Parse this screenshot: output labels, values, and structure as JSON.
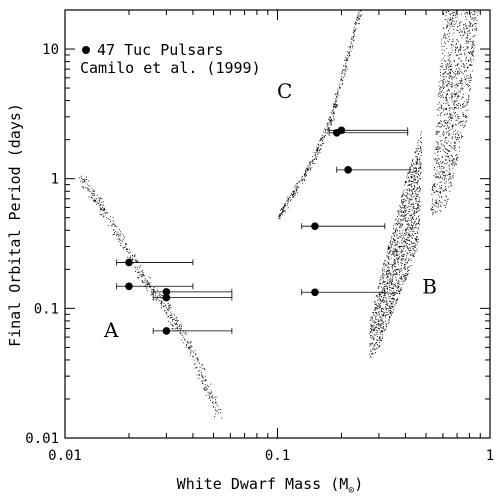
{
  "chart_data": {
    "type": "scatter",
    "xlabel": "White Dwarf Mass (M",
    "xlabel_subscript_symbol": "⊙",
    "xlabel_suffix": ")",
    "ylabel": "Final Orbital Period (days)",
    "xscale": "log",
    "yscale": "log",
    "xlim": [
      0.01,
      1
    ],
    "ylim": [
      0.01,
      20
    ],
    "x_ticks": [
      {
        "value": 0.01,
        "label": "0.01"
      },
      {
        "value": 0.1,
        "label": "0.1"
      },
      {
        "value": 1,
        "label": "1"
      }
    ],
    "y_ticks": [
      {
        "value": 0.01,
        "label": "0.01"
      },
      {
        "value": 0.1,
        "label": "0.1"
      },
      {
        "value": 1,
        "label": "1"
      },
      {
        "value": 10,
        "label": "10"
      }
    ],
    "grid": false,
    "legend": {
      "placement": "top-left",
      "line1": "47 Tuc Pulsars",
      "line2": "Camilo et al. (1999)",
      "marker": "filled-circle"
    },
    "series": [
      {
        "name": "47 Tuc Pulsars",
        "marker": "filled-circle",
        "color": "#000000",
        "points": [
          {
            "x": 0.02,
            "y": 0.226,
            "x_err_low": 0.0175,
            "x_err_high": 0.04
          },
          {
            "x": 0.02,
            "y": 0.148,
            "x_err_low": 0.0175,
            "x_err_high": 0.04
          },
          {
            "x": 0.03,
            "y": 0.134,
            "x_err_low": 0.026,
            "x_err_high": 0.061
          },
          {
            "x": 0.03,
            "y": 0.121,
            "x_err_low": 0.026,
            "x_err_high": 0.061
          },
          {
            "x": 0.03,
            "y": 0.067,
            "x_err_low": 0.026,
            "x_err_high": 0.061
          },
          {
            "x": 0.2,
            "y": 2.36,
            "x_err_low": 0.175,
            "x_err_high": 0.41
          },
          {
            "x": 0.19,
            "y": 2.26,
            "x_err_low": 0.175,
            "x_err_high": 0.41
          },
          {
            "x": 0.215,
            "y": 1.17,
            "x_err_low": 0.19,
            "x_err_high": 0.42
          },
          {
            "x": 0.15,
            "y": 0.43,
            "x_err_low": 0.13,
            "x_err_high": 0.32
          },
          {
            "x": 0.15,
            "y": 0.133,
            "x_err_low": 0.13,
            "x_err_high": 0.32
          }
        ]
      }
    ],
    "regions": [
      {
        "label": "A",
        "label_pos": {
          "x": 0.0165,
          "y": 0.06
        },
        "style": "dotted-band",
        "centerline": [
          [
            0.012,
            1.0
          ],
          [
            0.016,
            0.5
          ],
          [
            0.022,
            0.2
          ],
          [
            0.03,
            0.1
          ],
          [
            0.04,
            0.045
          ],
          [
            0.053,
            0.015
          ]
        ],
        "spread_dex": 0.035,
        "density": 520
      },
      {
        "label": "B",
        "label_pos": {
          "x": 0.52,
          "y": 0.13
        },
        "style": "dotted-cloud",
        "polygon": [
          [
            0.27,
            0.04
          ],
          [
            0.3,
            0.05
          ],
          [
            0.46,
            0.3
          ],
          [
            0.48,
            2.5
          ],
          [
            0.4,
            1.0
          ],
          [
            0.32,
            0.25
          ],
          [
            0.27,
            0.08
          ]
        ],
        "density": 1400
      },
      {
        "label": "C",
        "label_pos": {
          "x": 0.108,
          "y": 4.2
        },
        "style": "dotted-band",
        "centerline": [
          [
            0.1,
            0.5
          ],
          [
            0.12,
            0.8
          ],
          [
            0.15,
            1.5
          ],
          [
            0.18,
            3.0
          ],
          [
            0.21,
            8.0
          ],
          [
            0.245,
            20.0
          ]
        ],
        "spread_dex": 0.02,
        "density": 420
      },
      {
        "label": "",
        "style": "dotted-cloud",
        "polygon": [
          [
            0.52,
            0.5
          ],
          [
            0.62,
            0.6
          ],
          [
            0.78,
            3.0
          ],
          [
            0.88,
            20.0
          ],
          [
            0.6,
            20.0
          ],
          [
            0.55,
            2.0
          ]
        ],
        "density": 1100
      }
    ]
  }
}
